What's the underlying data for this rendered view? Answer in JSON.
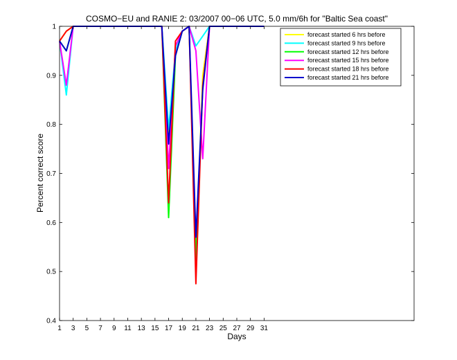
{
  "chart_data": {
    "type": "line",
    "title": "COSMO−EU and RANIE 2: 03/2007 00−06 UTC, 5.0 mm/6h for \"Baltic Sea coast\"",
    "xlabel": "Days",
    "ylabel": "Percent correct score",
    "xlim": [
      1,
      53
    ],
    "ylim": [
      0.4,
      1.0
    ],
    "x_ticks": [
      1,
      3,
      5,
      7,
      9,
      11,
      13,
      15,
      17,
      19,
      21,
      23,
      25,
      27,
      29,
      31
    ],
    "y_ticks": [
      0.4,
      0.5,
      0.6,
      0.7,
      0.8,
      0.9,
      1.0
    ],
    "y_tick_labels": [
      "0.4",
      "0.5",
      "0.6",
      "0.7",
      "0.8",
      "0.9",
      "1"
    ],
    "legend_position": "top-right",
    "grid": false,
    "series": [
      {
        "name": "forecast started 6 hrs before",
        "color": "#ffff00",
        "points": [
          [
            1,
            0.97
          ],
          [
            2,
            0.99
          ],
          [
            3,
            1.0
          ],
          [
            4,
            1.0
          ],
          [
            5,
            1.0
          ],
          [
            6,
            1.0
          ],
          [
            7,
            1.0
          ],
          [
            8,
            1.0
          ],
          [
            9,
            1.0
          ],
          [
            10,
            1.0
          ],
          [
            11,
            1.0
          ],
          [
            12,
            1.0
          ],
          [
            13,
            1.0
          ],
          [
            14,
            1.0
          ],
          [
            15,
            1.0
          ],
          [
            16,
            1.0
          ],
          [
            17,
            0.77
          ],
          [
            18,
            0.95
          ],
          [
            19,
            0.99
          ],
          [
            20,
            1.0
          ],
          [
            21,
            0.52
          ],
          [
            22,
            0.9
          ],
          [
            23,
            1.0
          ],
          [
            24,
            1.0
          ],
          [
            25,
            1.0
          ],
          [
            26,
            1.0
          ],
          [
            27,
            1.0
          ],
          [
            28,
            1.0
          ],
          [
            29,
            1.0
          ],
          [
            30,
            1.0
          ],
          [
            31,
            1.0
          ]
        ]
      },
      {
        "name": "forecast started 9 hrs before",
        "color": "#00ffff",
        "points": [
          [
            1,
            0.97
          ],
          [
            2,
            0.86
          ],
          [
            3,
            1.0
          ],
          [
            4,
            1.0
          ],
          [
            5,
            1.0
          ],
          [
            6,
            1.0
          ],
          [
            7,
            1.0
          ],
          [
            8,
            1.0
          ],
          [
            9,
            1.0
          ],
          [
            10,
            1.0
          ],
          [
            11,
            1.0
          ],
          [
            12,
            1.0
          ],
          [
            13,
            1.0
          ],
          [
            14,
            1.0
          ],
          [
            15,
            1.0
          ],
          [
            16,
            1.0
          ],
          [
            17,
            0.79
          ],
          [
            18,
            0.95
          ],
          [
            19,
            0.99
          ],
          [
            20,
            1.0
          ],
          [
            21,
            0.96
          ],
          [
            22,
            0.98
          ],
          [
            23,
            1.0
          ],
          [
            24,
            1.0
          ],
          [
            25,
            1.0
          ],
          [
            26,
            1.0
          ],
          [
            27,
            1.0
          ],
          [
            28,
            1.0
          ],
          [
            29,
            1.0
          ],
          [
            30,
            1.0
          ],
          [
            31,
            1.0
          ]
        ]
      },
      {
        "name": "forecast started 12 hrs before",
        "color": "#00ff00",
        "points": [
          [
            1,
            0.97
          ],
          [
            2,
            0.95
          ],
          [
            3,
            1.0
          ],
          [
            4,
            1.0
          ],
          [
            5,
            1.0
          ],
          [
            6,
            1.0
          ],
          [
            7,
            1.0
          ],
          [
            8,
            1.0
          ],
          [
            9,
            1.0
          ],
          [
            10,
            1.0
          ],
          [
            11,
            1.0
          ],
          [
            12,
            1.0
          ],
          [
            13,
            1.0
          ],
          [
            14,
            1.0
          ],
          [
            15,
            1.0
          ],
          [
            16,
            1.0
          ],
          [
            17,
            0.61
          ],
          [
            18,
            0.94
          ],
          [
            19,
            0.99
          ],
          [
            20,
            1.0
          ],
          [
            21,
            0.52
          ],
          [
            22,
            0.88
          ],
          [
            23,
            1.0
          ],
          [
            24,
            1.0
          ],
          [
            25,
            1.0
          ],
          [
            26,
            1.0
          ],
          [
            27,
            1.0
          ],
          [
            28,
            1.0
          ],
          [
            29,
            1.0
          ],
          [
            30,
            1.0
          ],
          [
            31,
            1.0
          ]
        ]
      },
      {
        "name": "forecast started 15 hrs before",
        "color": "#ff00ff",
        "points": [
          [
            1,
            0.97
          ],
          [
            2,
            0.88
          ],
          [
            3,
            1.0
          ],
          [
            4,
            1.0
          ],
          [
            5,
            1.0
          ],
          [
            6,
            1.0
          ],
          [
            7,
            1.0
          ],
          [
            8,
            1.0
          ],
          [
            9,
            1.0
          ],
          [
            10,
            1.0
          ],
          [
            11,
            1.0
          ],
          [
            12,
            1.0
          ],
          [
            13,
            1.0
          ],
          [
            14,
            1.0
          ],
          [
            15,
            1.0
          ],
          [
            16,
            1.0
          ],
          [
            17,
            0.71
          ],
          [
            18,
            0.96
          ],
          [
            19,
            0.99
          ],
          [
            20,
            1.0
          ],
          [
            21,
            0.95
          ],
          [
            22,
            0.73
          ],
          [
            23,
            1.0
          ],
          [
            24,
            1.0
          ],
          [
            25,
            1.0
          ],
          [
            26,
            1.0
          ],
          [
            27,
            1.0
          ],
          [
            28,
            1.0
          ],
          [
            29,
            1.0
          ],
          [
            30,
            1.0
          ],
          [
            31,
            1.0
          ]
        ]
      },
      {
        "name": "forecast started 18 hrs before",
        "color": "#ff0000",
        "points": [
          [
            1,
            0.97
          ],
          [
            2,
            0.99
          ],
          [
            3,
            1.0
          ],
          [
            4,
            1.0
          ],
          [
            5,
            1.0
          ],
          [
            6,
            1.0
          ],
          [
            7,
            1.0
          ],
          [
            8,
            1.0
          ],
          [
            9,
            1.0
          ],
          [
            10,
            1.0
          ],
          [
            11,
            1.0
          ],
          [
            12,
            1.0
          ],
          [
            13,
            1.0
          ],
          [
            14,
            1.0
          ],
          [
            15,
            1.0
          ],
          [
            16,
            1.0
          ],
          [
            17,
            0.64
          ],
          [
            18,
            0.97
          ],
          [
            19,
            0.99
          ],
          [
            20,
            1.0
          ],
          [
            21,
            0.475
          ],
          [
            22,
            0.88
          ],
          [
            23,
            1.0
          ],
          [
            24,
            1.0
          ],
          [
            25,
            1.0
          ],
          [
            26,
            1.0
          ],
          [
            27,
            1.0
          ],
          [
            28,
            1.0
          ],
          [
            29,
            1.0
          ],
          [
            30,
            1.0
          ],
          [
            31,
            1.0
          ]
        ]
      },
      {
        "name": "forecast started 21 hrs before",
        "color": "#0000cc",
        "points": [
          [
            1,
            0.97
          ],
          [
            2,
            0.95
          ],
          [
            3,
            1.0
          ],
          [
            4,
            1.0
          ],
          [
            5,
            1.0
          ],
          [
            6,
            1.0
          ],
          [
            7,
            1.0
          ],
          [
            8,
            1.0
          ],
          [
            9,
            1.0
          ],
          [
            10,
            1.0
          ],
          [
            11,
            1.0
          ],
          [
            12,
            1.0
          ],
          [
            13,
            1.0
          ],
          [
            14,
            1.0
          ],
          [
            15,
            1.0
          ],
          [
            16,
            1.0
          ],
          [
            17,
            0.76
          ],
          [
            18,
            0.94
          ],
          [
            19,
            0.99
          ],
          [
            20,
            1.0
          ],
          [
            21,
            0.57
          ],
          [
            22,
            0.87
          ],
          [
            23,
            1.0
          ],
          [
            24,
            1.0
          ],
          [
            25,
            1.0
          ],
          [
            26,
            1.0
          ],
          [
            27,
            1.0
          ],
          [
            28,
            1.0
          ],
          [
            29,
            1.0
          ],
          [
            30,
            1.0
          ],
          [
            31,
            1.0
          ]
        ]
      }
    ]
  }
}
